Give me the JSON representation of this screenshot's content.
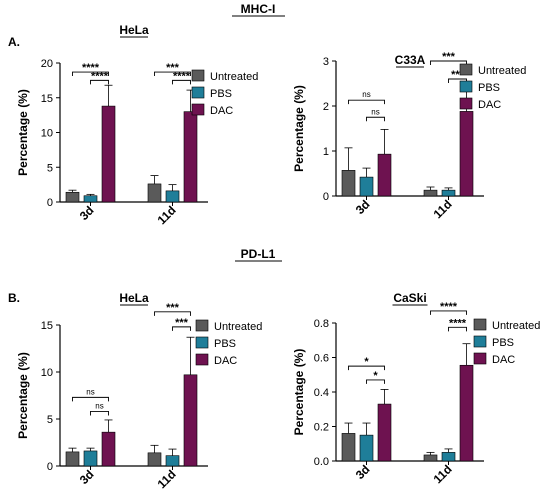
{
  "figure": {
    "section_a_title": "MHC-I",
    "section_b_title": "PD-L1",
    "section_a_letter": "A.",
    "section_b_letter": "B."
  },
  "colors": {
    "Untreated": "#5a5a5a",
    "PBS": "#1f7e99",
    "DAC": "#6e1250"
  },
  "chart_data": [
    {
      "type": "bar",
      "title": "HeLa",
      "ylabel": "Percentage (%)",
      "ylim": [
        0,
        20
      ],
      "yticks": [
        "0",
        "5",
        "10",
        "15",
        "20"
      ],
      "categories": [
        "3d",
        "11d"
      ],
      "series": [
        {
          "name": "Untreated",
          "values": [
            1.4,
            2.6
          ],
          "errors": [
            0.3,
            1.2
          ]
        },
        {
          "name": "PBS",
          "values": [
            0.9,
            1.6
          ],
          "errors": [
            0.2,
            0.9
          ]
        },
        {
          "name": "DAC",
          "values": [
            13.8,
            13.0
          ],
          "errors": [
            3.0,
            3.1
          ]
        }
      ],
      "significance": [
        {
          "group": 0,
          "from": 0,
          "to": 2,
          "label": "****",
          "y": 18.7
        },
        {
          "group": 0,
          "from": 1,
          "to": 2,
          "label": "****",
          "y": 17.5
        },
        {
          "group": 1,
          "from": 0,
          "to": 2,
          "label": "***",
          "y": 18.7
        },
        {
          "group": 1,
          "from": 1,
          "to": 2,
          "label": "****",
          "y": 17.5
        }
      ],
      "legend": "right"
    },
    {
      "type": "bar",
      "title": "C33A",
      "ylabel": "Percentage (%)",
      "ylim": [
        0,
        3
      ],
      "yticks": [
        "0",
        "1",
        "2",
        "3"
      ],
      "categories": [
        "3d",
        "11d"
      ],
      "series": [
        {
          "name": "Untreated",
          "values": [
            0.57,
            0.13
          ],
          "errors": [
            0.5,
            0.07
          ]
        },
        {
          "name": "PBS",
          "values": [
            0.42,
            0.13
          ],
          "errors": [
            0.2,
            0.05
          ]
        },
        {
          "name": "DAC",
          "values": [
            0.93,
            1.88
          ],
          "errors": [
            0.55,
            0.57
          ]
        }
      ],
      "significance": [
        {
          "group": 0,
          "from": 0,
          "to": 2,
          "label": "ns",
          "y": 2.13
        },
        {
          "group": 0,
          "from": 1,
          "to": 2,
          "label": "ns",
          "y": 1.75
        },
        {
          "group": 1,
          "from": 0,
          "to": 2,
          "label": "***",
          "y": 3.0
        },
        {
          "group": 1,
          "from": 1,
          "to": 2,
          "label": "***",
          "y": 2.6
        }
      ],
      "legend": "right"
    },
    {
      "type": "bar",
      "title": "HeLa",
      "ylabel": "Percentage (%)",
      "ylim": [
        0,
        15
      ],
      "yticks": [
        "0",
        "5",
        "10",
        "15"
      ],
      "categories": [
        "3d",
        "11d"
      ],
      "series": [
        {
          "name": "Untreated",
          "values": [
            1.5,
            1.4
          ],
          "errors": [
            0.4,
            0.8
          ]
        },
        {
          "name": "PBS",
          "values": [
            1.6,
            1.1
          ],
          "errors": [
            0.3,
            0.7
          ]
        },
        {
          "name": "DAC",
          "values": [
            3.6,
            9.7
          ],
          "errors": [
            1.3,
            4.0
          ]
        }
      ],
      "significance": [
        {
          "group": 0,
          "from": 0,
          "to": 2,
          "label": "ns",
          "y": 7.3
        },
        {
          "group": 0,
          "from": 1,
          "to": 2,
          "label": "ns",
          "y": 5.8
        },
        {
          "group": 1,
          "from": 0,
          "to": 2,
          "label": "***",
          "y": 16.4
        },
        {
          "group": 1,
          "from": 1,
          "to": 2,
          "label": "***",
          "y": 14.8
        }
      ],
      "legend": "right"
    },
    {
      "type": "bar",
      "title": "CaSki",
      "ylabel": "Percentage (%)",
      "ylim": [
        0,
        0.8
      ],
      "yticks": [
        "0.0",
        "0.2",
        "0.4",
        "0.6",
        "0.8"
      ],
      "categories": [
        "3d",
        "11d"
      ],
      "series": [
        {
          "name": "Untreated",
          "values": [
            0.16,
            0.035
          ],
          "errors": [
            0.06,
            0.015
          ]
        },
        {
          "name": "PBS",
          "values": [
            0.15,
            0.05
          ],
          "errors": [
            0.07,
            0.02
          ]
        },
        {
          "name": "DAC",
          "values": [
            0.33,
            0.555
          ],
          "errors": [
            0.085,
            0.125
          ]
        }
      ],
      "significance": [
        {
          "group": 0,
          "from": 0,
          "to": 2,
          "label": "*",
          "y": 0.55
        },
        {
          "group": 0,
          "from": 1,
          "to": 2,
          "label": "*",
          "y": 0.47
        },
        {
          "group": 1,
          "from": 0,
          "to": 2,
          "label": "****",
          "y": 0.87
        },
        {
          "group": 1,
          "from": 1,
          "to": 2,
          "label": "****",
          "y": 0.775
        }
      ],
      "legend": "right"
    }
  ]
}
